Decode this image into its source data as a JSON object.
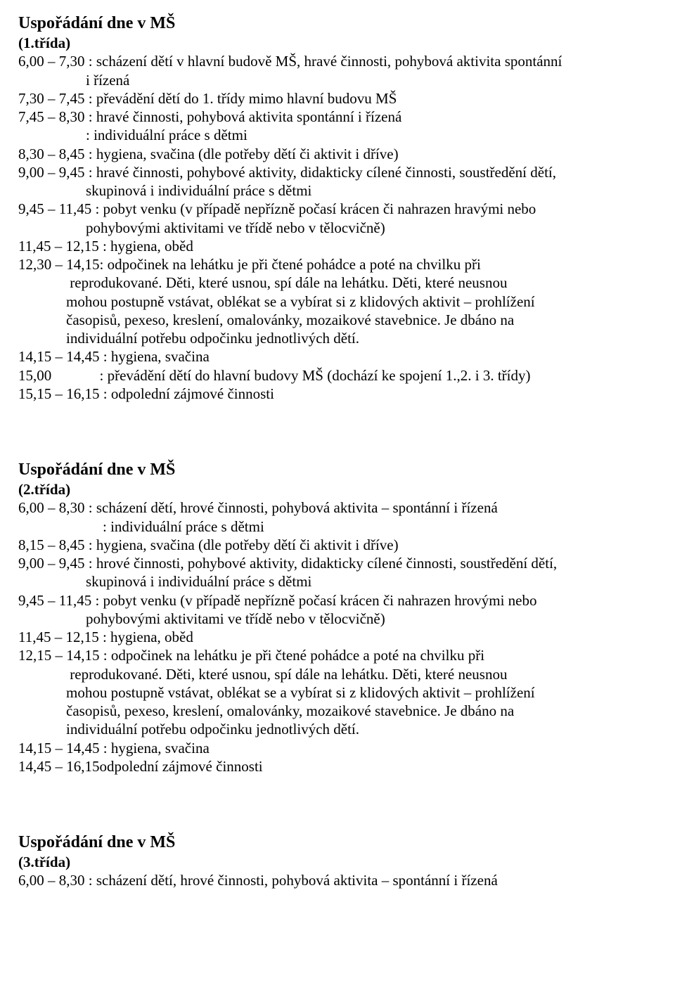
{
  "sections": [
    {
      "heading": "Uspořádání dne v MŠ",
      "sub": "(1.třída)",
      "lines": [
        {
          "text": "6,00 – 7,30 : scházení dětí v hlavní budově MŠ, hravé činnosti, pohybová aktivita spontánní",
          "indent": ""
        },
        {
          "text": "i řízená",
          "indent": "indent-1"
        },
        {
          "text": "7,30 – 7,45 : převádění dětí do 1. třídy mimo hlavní budovu MŠ",
          "indent": ""
        },
        {
          "text": "7,45 – 8,30 : hravé činnosti, pohybová aktivita spontánní i řízená",
          "indent": ""
        },
        {
          "text": ": individuální práce s dětmi",
          "indent": "indent-1"
        },
        {
          "text": "8,30 – 8,45 : hygiena, svačina (dle potřeby dětí či aktivit i dříve)",
          "indent": ""
        },
        {
          "text": "9,00 – 9,45 : hravé činnosti, pohybové aktivity, didakticky cílené činnosti, soustředění dětí,",
          "indent": ""
        },
        {
          "text": "skupinová i individuální práce s dětmi",
          "indent": "indent-1"
        },
        {
          "text": "9,45 – 11,45 : pobyt venku (v případě nepřízně počasí krácen či nahrazen hravými nebo",
          "indent": ""
        },
        {
          "text": "pohybovými aktivitami ve třídě nebo v tělocvičně)",
          "indent": "indent-1"
        },
        {
          "text": "11,45 – 12,15 : hygiena, oběd",
          "indent": ""
        },
        {
          "text": "12,30 – 14,15: odpočinek na lehátku je při čtené pohádce a poté na chvilku při",
          "indent": ""
        },
        {
          "text": " reprodukované. Děti, které usnou, spí dále na lehátku. Děti, které neusnou",
          "indent": "indent-2"
        },
        {
          "text": "mohou postupně vstávat, oblékat se a vybírat si z klidových aktivit – prohlížení",
          "indent": "indent-2"
        },
        {
          "text": "časopisů, pexeso, kreslení, omalovánky, mozaikové stavebnice. Je dbáno na",
          "indent": "indent-2"
        },
        {
          "text": "individuální potřebu odpočinku jednotlivých dětí.",
          "indent": "indent-2"
        },
        {
          "text": "14,15 – 14,45 : hygiena, svačina",
          "indent": ""
        },
        {
          "text": "15,00             : převádění dětí do hlavní budovy MŠ (dochází ke spojení 1.,2. i 3. třídy)",
          "indent": ""
        },
        {
          "text": "15,15 – 16,15 : odpolední zájmové činnosti",
          "indent": ""
        }
      ]
    },
    {
      "heading": "Uspořádání dne v MŠ",
      "sub": "(2.třída)",
      "lines": [
        {
          "text": "6,00 – 8,30 : scházení dětí, hrové činnosti, pohybová aktivita – spontánní i řízená",
          "indent": ""
        },
        {
          "text": ": individuální práce s dětmi",
          "indent": "indent-5"
        },
        {
          "text": "8,15 – 8,45 : hygiena, svačina (dle potřeby dětí či aktivit i dříve)",
          "indent": ""
        },
        {
          "text": "9,00 – 9,45 : hrové činnosti, pohybové aktivity, didakticky cílené činnosti, soustředění dětí,",
          "indent": ""
        },
        {
          "text": "skupinová i individuální práce s dětmi",
          "indent": "indent-1"
        },
        {
          "text": "9,45 – 11,45 : pobyt venku (v případě nepřízně počasí krácen či nahrazen hrovými nebo",
          "indent": ""
        },
        {
          "text": "pohybovými aktivitami ve třídě nebo v tělocvičně)",
          "indent": "indent-1"
        },
        {
          "text": "11,45 – 12,15 : hygiena, oběd",
          "indent": ""
        },
        {
          "text": "12,15 – 14,15 : odpočinek na lehátku je při čtené pohádce a poté na chvilku při",
          "indent": ""
        },
        {
          "text": " reprodukované. Děti, které usnou, spí dále na lehátku. Děti, které neusnou",
          "indent": "indent-2"
        },
        {
          "text": "mohou postupně vstávat, oblékat se a vybírat si z klidových aktivit – prohlížení",
          "indent": "indent-2"
        },
        {
          "text": "časopisů, pexeso, kreslení, omalovánky, mozaikové stavebnice. Je dbáno na",
          "indent": "indent-2"
        },
        {
          "text": "individuální potřebu odpočinku jednotlivých dětí.",
          "indent": "indent-2"
        },
        {
          "text": "14,15 – 14,45 : hygiena, svačina",
          "indent": ""
        },
        {
          "text": "14,45 – 16,15odpolední zájmové činnosti",
          "indent": ""
        }
      ]
    },
    {
      "heading": "Uspořádání dne v MŠ",
      "sub": "(3.třída)",
      "lines": [
        {
          "text": "6,00 – 8,30 : scházení dětí, hrové činnosti, pohybová aktivita – spontánní i řízená",
          "indent": ""
        }
      ]
    }
  ]
}
